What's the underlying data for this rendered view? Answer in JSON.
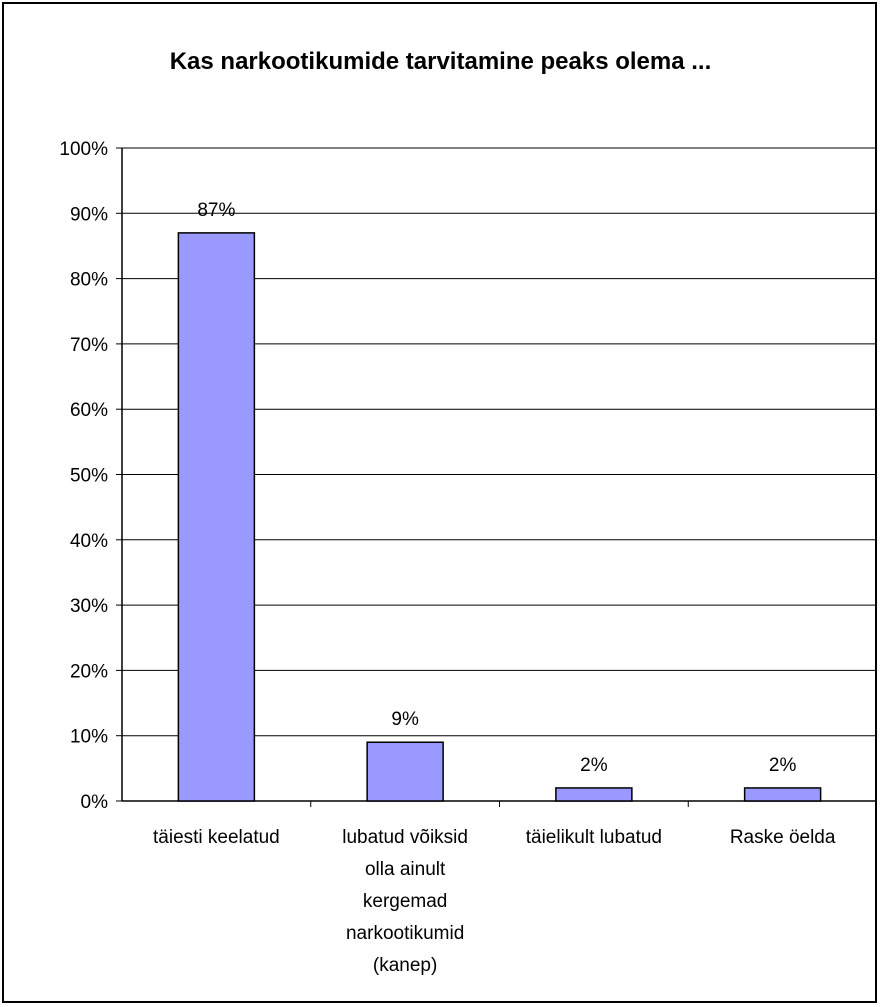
{
  "chart_data": {
    "type": "bar",
    "title": "Kas narkootikumide tarvitamine peaks olema ...",
    "xlabel": "",
    "ylabel": "",
    "ylim": [
      0,
      100
    ],
    "y_ticks": [
      "0%",
      "10%",
      "20%",
      "30%",
      "40%",
      "50%",
      "60%",
      "70%",
      "80%",
      "90%",
      "100%"
    ],
    "grid": true,
    "legend": "none",
    "categories": [
      [
        "täiesti keelatud"
      ],
      [
        "lubatud võiksid",
        "olla ainult",
        "kergemad",
        "narkootikumid",
        "(kanep)"
      ],
      [
        "täielikult lubatud"
      ],
      [
        "Raske öelda"
      ]
    ],
    "values": [
      87,
      9,
      2,
      2
    ],
    "data_labels": [
      "87%",
      "9%",
      "2%",
      "2%"
    ],
    "bar_color": "#9999ff"
  }
}
